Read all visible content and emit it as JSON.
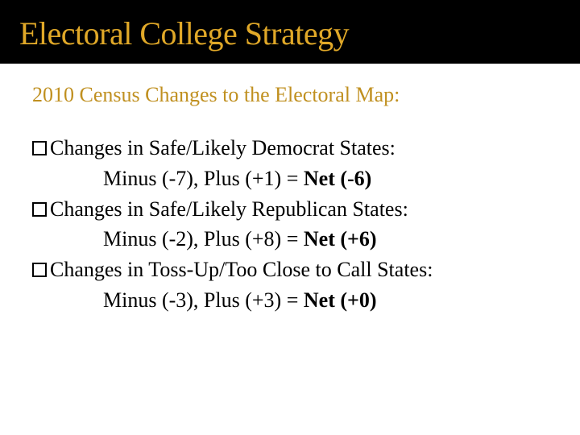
{
  "title": "Electoral College Strategy",
  "subtitle": "2010 Census Changes to the Electoral Map:",
  "items": [
    {
      "heading": "Changes in Safe/Likely Democrat States:",
      "detail_prefix": "Minus (-7), Plus (+1) = ",
      "detail_bold": "Net (-6)"
    },
    {
      "heading": "Changes in Safe/Likely Republican States:",
      "detail_prefix": "Minus (-2), Plus (+8) = ",
      "detail_bold": "Net (+6)"
    },
    {
      "heading": "Changes in Toss-Up/Too Close to Call States:",
      "detail_prefix": "Minus (-3), Plus (+3) = ",
      "detail_bold": "Net (+0)"
    }
  ],
  "colors": {
    "title_bg": "#000000",
    "title_text": "#e0a828",
    "subtitle_text": "#c09020",
    "body_text": "#000000",
    "page_bg": "#ffffff"
  }
}
